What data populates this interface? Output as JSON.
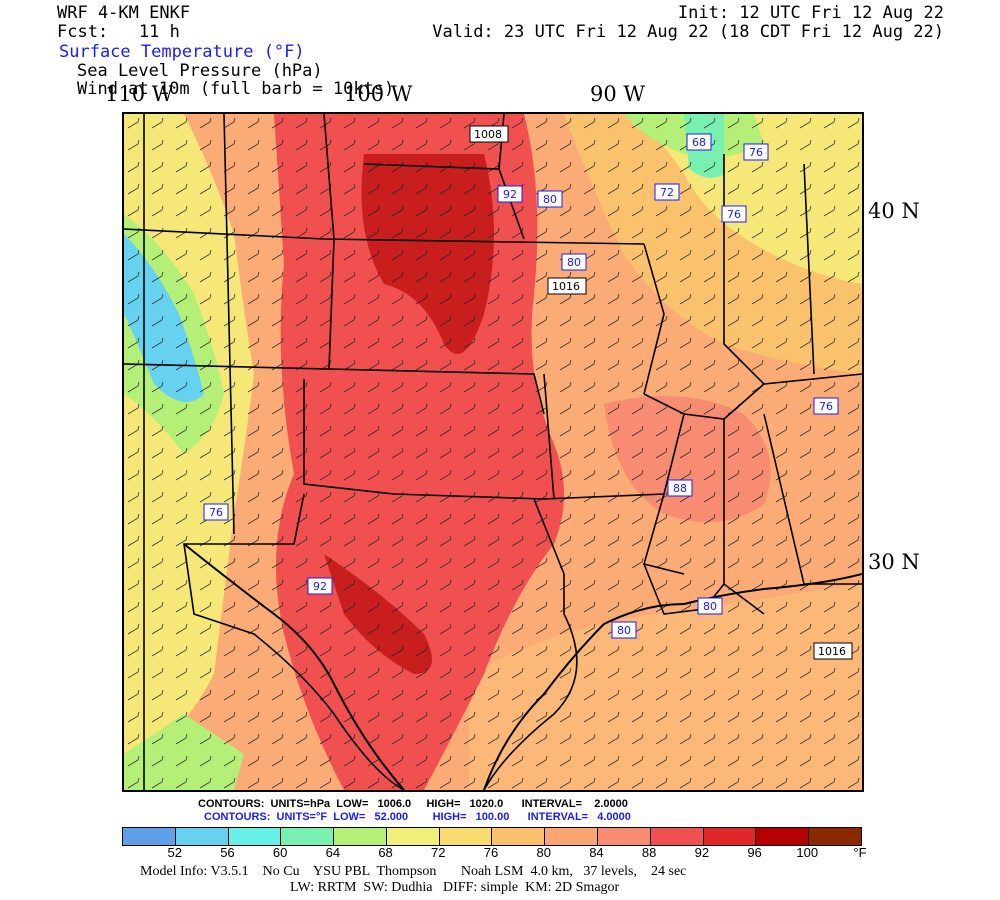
{
  "header": {
    "model_name": "WRF 4-KM ENKF",
    "fcst_label": "Fcst:",
    "fcst_value": "11 h",
    "init": "Init: 12 UTC Fri 12 Aug 22",
    "valid": "Valid: 23 UTC Fri 12 Aug 22 (18 CDT Fri 12 Aug 22)",
    "field1": "Surface Temperature (°F)",
    "field2": "Sea Level Pressure (hPa)",
    "field3": "Wind at 10m (full barb = 10kts)"
  },
  "axes": {
    "lon_labels": [
      "110 W",
      "100 W",
      "90 W"
    ],
    "lat_labels": [
      "40 N",
      "30 N"
    ]
  },
  "map_labels": {
    "temp_boxes": [
      "68",
      "76",
      "72",
      "76",
      "92",
      "80",
      "80",
      "76",
      "88",
      "92",
      "76",
      "80",
      "80"
    ],
    "pressure_boxes": [
      "1008",
      "1016",
      "1016"
    ]
  },
  "contour_info": {
    "pressure": {
      "label": "CONTOURS:",
      "units": "UNITS=hPa",
      "low": "LOW=   1006.0",
      "high": "HIGH=   1020.0",
      "interval": "INTERVAL=    2.0000"
    },
    "temperature": {
      "label": "CONTOURS:",
      "units": "UNITS=°F",
      "low": "LOW=   52.000",
      "high": "HIGH=   100.00",
      "interval": "INTERVAL=   4.0000"
    }
  },
  "colorbar": {
    "labels": [
      "52",
      "56",
      "60",
      "64",
      "68",
      "72",
      "76",
      "80",
      "84",
      "88",
      "92",
      "96",
      "100"
    ],
    "unit": "°F",
    "colors": [
      "#5fa0e8",
      "#66d2f0",
      "#66f0e6",
      "#78f0b0",
      "#b4f078",
      "#f0f078",
      "#f8dc6e",
      "#fbc06c",
      "#fba672",
      "#f88c72",
      "#f05050",
      "#e02828",
      "#b40000",
      "#8c2800"
    ]
  },
  "model_info": {
    "line1": "Model Info: V3.5.1    No Cu    YSU PBL  Thompson       Noah LSM  4.0 km,   37 levels,    24 sec",
    "line2": "LW: RRTM  SW: Dudhia   DIFF: simple  KM: 2D Smagor"
  }
}
